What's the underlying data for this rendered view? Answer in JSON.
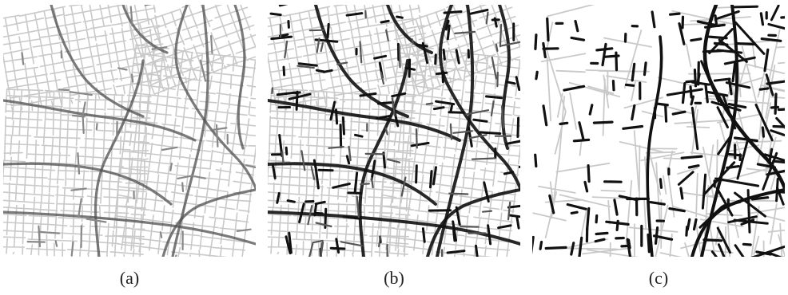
{
  "panels": [
    {
      "id": "a",
      "caption": "(a)"
    },
    {
      "id": "b",
      "caption": "(b)"
    },
    {
      "id": "c",
      "caption": "(c)"
    }
  ],
  "colors": {
    "base_street": "#c9c9c9",
    "highlight_soft": "#4d4d4d",
    "highlight_strong": "#111111",
    "background": "#ffffff"
  }
}
